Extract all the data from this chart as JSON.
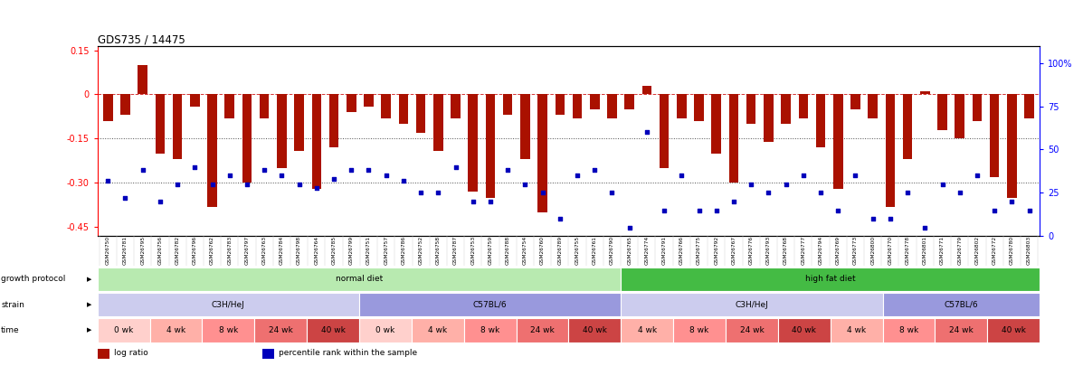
{
  "title": "GDS735 / 14475",
  "samples": [
    "GSM26750",
    "GSM26781",
    "GSM26795",
    "GSM26756",
    "GSM26782",
    "GSM26796",
    "GSM26762",
    "GSM26783",
    "GSM26797",
    "GSM26763",
    "GSM26784",
    "GSM26798",
    "GSM26764",
    "GSM26785",
    "GSM26799",
    "GSM26751",
    "GSM26757",
    "GSM26786",
    "GSM26752",
    "GSM26758",
    "GSM26787",
    "GSM26753",
    "GSM26759",
    "GSM26788",
    "GSM26754",
    "GSM26760",
    "GSM26789",
    "GSM26755",
    "GSM26761",
    "GSM26790",
    "GSM26765",
    "GSM26774",
    "GSM26791",
    "GSM26766",
    "GSM26775",
    "GSM26792",
    "GSM26767",
    "GSM26776",
    "GSM26793",
    "GSM26768",
    "GSM26777",
    "GSM26794",
    "GSM26769",
    "GSM26773",
    "GSM26800",
    "GSM26770",
    "GSM26778",
    "GSM26801",
    "GSM26771",
    "GSM26779",
    "GSM26802",
    "GSM26772",
    "GSM26780",
    "GSM26803"
  ],
  "log_ratio": [
    -0.09,
    -0.07,
    0.1,
    -0.2,
    -0.22,
    -0.04,
    -0.38,
    -0.08,
    -0.3,
    -0.08,
    -0.25,
    -0.19,
    -0.32,
    -0.18,
    -0.06,
    -0.04,
    -0.08,
    -0.1,
    -0.13,
    -0.19,
    -0.08,
    -0.33,
    -0.35,
    -0.07,
    -0.22,
    -0.4,
    -0.07,
    -0.08,
    -0.05,
    -0.08,
    -0.05,
    0.03,
    -0.25,
    -0.08,
    -0.09,
    -0.2,
    -0.3,
    -0.1,
    -0.16,
    -0.1,
    -0.08,
    -0.18,
    -0.32,
    -0.05,
    -0.08,
    -0.38,
    -0.22,
    0.01,
    -0.12,
    -0.15,
    -0.09,
    -0.28,
    -0.35,
    -0.08
  ],
  "percentile_rank": [
    32,
    22,
    38,
    20,
    30,
    40,
    30,
    35,
    30,
    38,
    35,
    30,
    28,
    33,
    38,
    38,
    35,
    32,
    25,
    25,
    40,
    20,
    20,
    38,
    30,
    25,
    10,
    35,
    38,
    25,
    5,
    60,
    15,
    35,
    15,
    15,
    20,
    30,
    25,
    30,
    35,
    25,
    15,
    35,
    10,
    10,
    25,
    5,
    30,
    25,
    35,
    15,
    20,
    15
  ],
  "bar_color": "#aa1100",
  "dot_color": "#0000bb",
  "ylim_left": [
    -0.48,
    0.165
  ],
  "yticks_left": [
    0.15,
    0.0,
    -0.15,
    -0.3,
    -0.45
  ],
  "ytick_labels_left": [
    "0.15",
    "0",
    "-0.15",
    "-0.30",
    "-0.45"
  ],
  "ylim_right": [
    0,
    110
  ],
  "yticks_right": [
    0,
    25,
    50,
    75,
    100
  ],
  "ytick_labels_right": [
    "0",
    "25",
    "50",
    "75",
    "100%"
  ],
  "hline_zero": 0.0,
  "hlines_dotted": [
    -0.15,
    -0.3
  ],
  "growth_protocol_sections": [
    {
      "label": "normal diet",
      "start": 0,
      "end": 30,
      "color": "#b8eab0"
    },
    {
      "label": "high fat diet",
      "start": 30,
      "end": 54,
      "color": "#44bb44"
    }
  ],
  "strain_sections": [
    {
      "label": "C3H/HeJ",
      "start": 0,
      "end": 15,
      "color": "#ccccee"
    },
    {
      "label": "C57BL/6",
      "start": 15,
      "end": 30,
      "color": "#9999dd"
    },
    {
      "label": "C3H/HeJ",
      "start": 30,
      "end": 45,
      "color": "#ccccee"
    },
    {
      "label": "C57BL/6",
      "start": 45,
      "end": 54,
      "color": "#9999dd"
    }
  ],
  "time_sections": [
    {
      "label": "0 wk",
      "start": 0,
      "end": 3,
      "color": "#ffd0cc"
    },
    {
      "label": "4 wk",
      "start": 3,
      "end": 6,
      "color": "#ffb0a8"
    },
    {
      "label": "8 wk",
      "start": 6,
      "end": 9,
      "color": "#ff9090"
    },
    {
      "label": "24 wk",
      "start": 9,
      "end": 12,
      "color": "#ee7070"
    },
    {
      "label": "40 wk",
      "start": 12,
      "end": 15,
      "color": "#cc4444"
    },
    {
      "label": "0 wk",
      "start": 15,
      "end": 18,
      "color": "#ffd0cc"
    },
    {
      "label": "4 wk",
      "start": 18,
      "end": 21,
      "color": "#ffb0a8"
    },
    {
      "label": "8 wk",
      "start": 21,
      "end": 24,
      "color": "#ff9090"
    },
    {
      "label": "24 wk",
      "start": 24,
      "end": 27,
      "color": "#ee7070"
    },
    {
      "label": "40 wk",
      "start": 27,
      "end": 30,
      "color": "#cc4444"
    },
    {
      "label": "4 wk",
      "start": 30,
      "end": 33,
      "color": "#ffb0a8"
    },
    {
      "label": "8 wk",
      "start": 33,
      "end": 36,
      "color": "#ff9090"
    },
    {
      "label": "24 wk",
      "start": 36,
      "end": 39,
      "color": "#ee7070"
    },
    {
      "label": "40 wk",
      "start": 39,
      "end": 42,
      "color": "#cc4444"
    },
    {
      "label": "4 wk",
      "start": 42,
      "end": 45,
      "color": "#ffb0a8"
    },
    {
      "label": "8 wk",
      "start": 45,
      "end": 48,
      "color": "#ff9090"
    },
    {
      "label": "24 wk",
      "start": 48,
      "end": 51,
      "color": "#ee7070"
    },
    {
      "label": "40 wk",
      "start": 51,
      "end": 54,
      "color": "#cc4444"
    }
  ],
  "legend_items": [
    {
      "label": "log ratio",
      "color": "#aa1100"
    },
    {
      "label": "percentile rank within the sample",
      "color": "#0000bb"
    }
  ],
  "fig_width": 11.97,
  "fig_height": 4.05,
  "dpi": 100
}
